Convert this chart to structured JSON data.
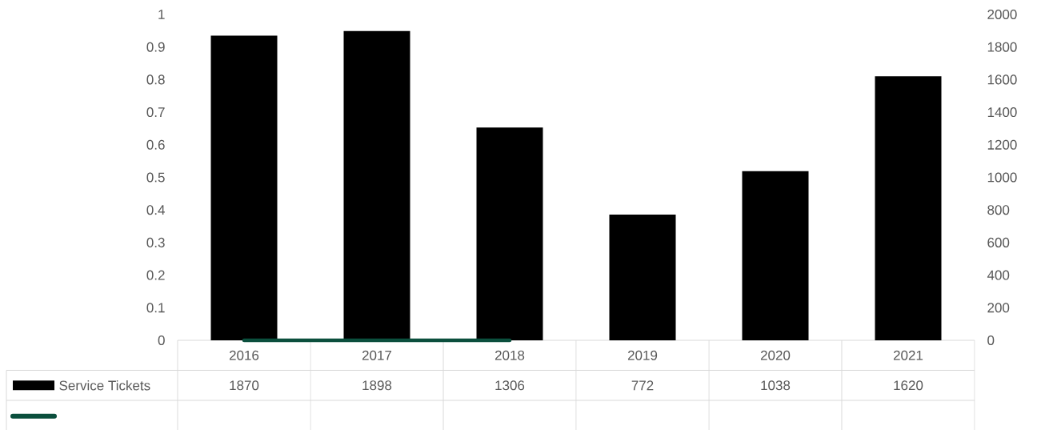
{
  "chart_data": {
    "type": "bar",
    "categories": [
      "2016",
      "2017",
      "2018",
      "2019",
      "2020",
      "2021"
    ],
    "series": [
      {
        "name": "Service Tickets",
        "axis": "y2",
        "color": "#000000",
        "values": [
          1870,
          1898,
          1306,
          772,
          1038,
          1620
        ],
        "value_labels": [
          "1870",
          "1898",
          "1306",
          "772",
          "1038",
          "1620"
        ]
      },
      {
        "type": "line",
        "axis": "y",
        "color": "#0b4f3d",
        "line_style": "solid",
        "values": [
          0,
          0,
          0,
          null,
          null,
          null
        ],
        "value_labels": [
          null,
          null,
          null,
          null,
          null,
          null
        ]
      }
    ],
    "ylim": [
      0,
      1
    ],
    "yticks": [
      0,
      0.1,
      0.2,
      0.3,
      0.4,
      0.5,
      0.6,
      0.7,
      0.8,
      0.9,
      1
    ],
    "y2lim": [
      0,
      2000
    ],
    "y2ticks": [
      0,
      200,
      400,
      600,
      800,
      1000,
      1200,
      1400,
      1600,
      1800,
      2000
    ],
    "legend": "bottom",
    "grid": false
  }
}
